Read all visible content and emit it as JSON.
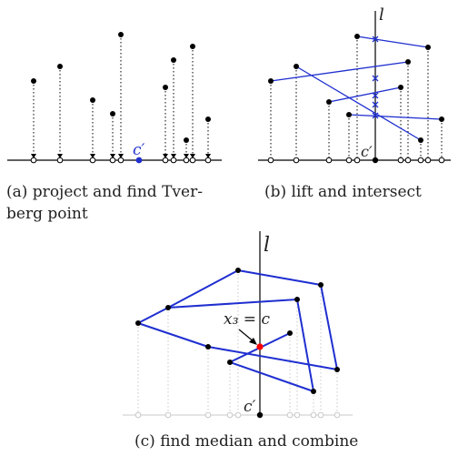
{
  "panels": [
    {
      "id": "a",
      "caption_line1": "(a) project and find Tver-",
      "caption_line2": "berg point",
      "point_label": "c′"
    },
    {
      "id": "b",
      "caption_line1": "(b) lift and intersect",
      "line_label": "l",
      "point_label": "c′"
    },
    {
      "id": "c",
      "caption_line1": "(c) find median and combine",
      "line_label": "l",
      "point_label": "c′",
      "median_label": "x₃ = c"
    }
  ],
  "colors": {
    "ink": "#000000",
    "segment": "#1f2fd0",
    "tverberg_point": "#1f2fd0",
    "median_point": "#ff0000",
    "faint": "#c8c8c8"
  }
}
